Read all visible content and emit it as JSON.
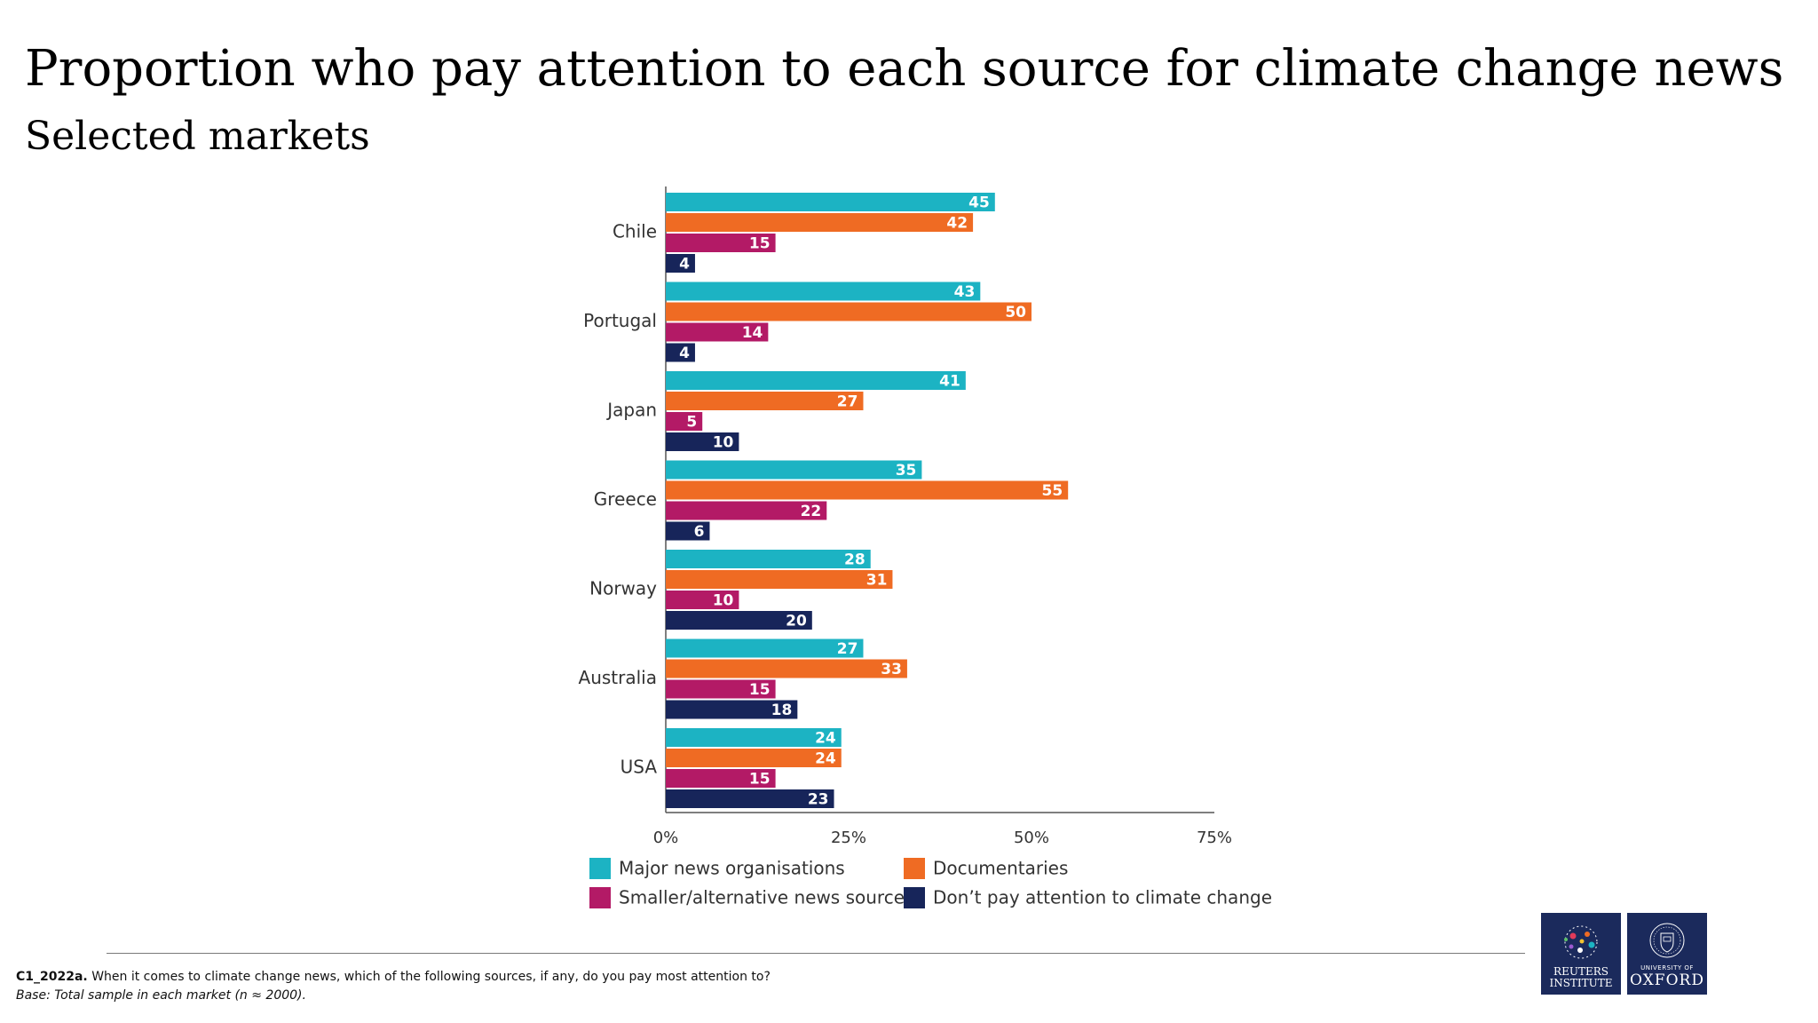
{
  "title": "Proportion who pay attention to each source for climate change news",
  "subtitle": "Selected markets",
  "chart_data": {
    "type": "bar",
    "orientation": "horizontal",
    "title": "",
    "xlabel": "",
    "ylabel": "",
    "xlim": [
      0,
      75
    ],
    "ticks": [
      "0%",
      "25%",
      "50%",
      "75%"
    ],
    "tick_values": [
      0,
      25,
      50,
      75
    ],
    "grid": false,
    "legend_position": "bottom",
    "categories": [
      "Chile",
      "Portugal",
      "Japan",
      "Greece",
      "Norway",
      "Australia",
      "USA"
    ],
    "series": [
      {
        "name": "Major news organisations",
        "color": "#1cb3c3",
        "values": [
          45,
          43,
          41,
          35,
          28,
          27,
          24
        ]
      },
      {
        "name": "Documentaries",
        "color": "#ef6b23",
        "values": [
          42,
          50,
          27,
          55,
          31,
          33,
          24
        ]
      },
      {
        "name": "Smaller/alternative news sources",
        "color": "#b31a66",
        "values": [
          15,
          14,
          5,
          22,
          10,
          15,
          15
        ]
      },
      {
        "name": "Don’t pay attention to climate change",
        "color": "#17255a",
        "values": [
          4,
          4,
          10,
          6,
          20,
          18,
          23
        ]
      }
    ]
  },
  "footnote": {
    "question_code": "C1_2022a.",
    "question_text": " When it comes to climate change news, which of the following sources, if any, do you pay most attention to?",
    "base": "Base: Total sample in each market (n ≈ 2000)."
  },
  "logos": {
    "reuters": "REUTERS\nINSTITUTE",
    "oxford_small": "UNIVERSITY OF",
    "oxford_big": "OXFORD"
  }
}
